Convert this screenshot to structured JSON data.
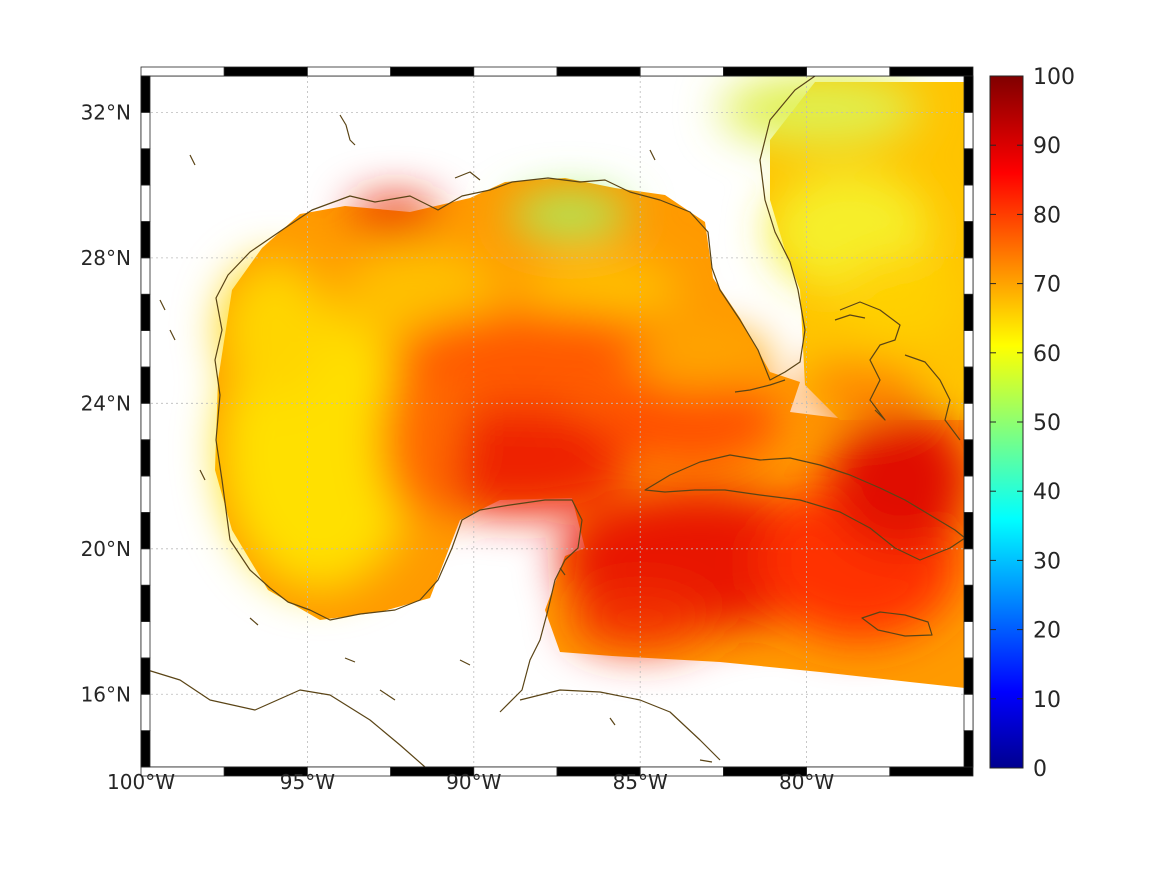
{
  "map": {
    "lon_range": [
      -100,
      -75
    ],
    "lat_range": [
      14,
      33
    ],
    "x_ticks": [
      {
        "lon": -100,
        "label": "100°W"
      },
      {
        "lon": -95,
        "label": "95°W"
      },
      {
        "lon": -90,
        "label": "90°W"
      },
      {
        "lon": -85,
        "label": "85°W"
      },
      {
        "lon": -80,
        "label": "80°W"
      }
    ],
    "y_ticks": [
      {
        "lat": 32,
        "label": "32°N"
      },
      {
        "lat": 28,
        "label": "28°N"
      },
      {
        "lat": 24,
        "label": "24°N"
      },
      {
        "lat": 20,
        "label": "20°N"
      },
      {
        "lat": 16,
        "label": "16°N"
      }
    ],
    "gridlines": true,
    "coastline_color": "#5a4416"
  },
  "colorbar": {
    "min": 0,
    "max": 100,
    "colormap": "jet",
    "placement": "right",
    "tick_labels": [
      "100",
      "90",
      "80",
      "70",
      "60",
      "50",
      "40",
      "30",
      "20",
      "10",
      "0"
    ]
  }
}
